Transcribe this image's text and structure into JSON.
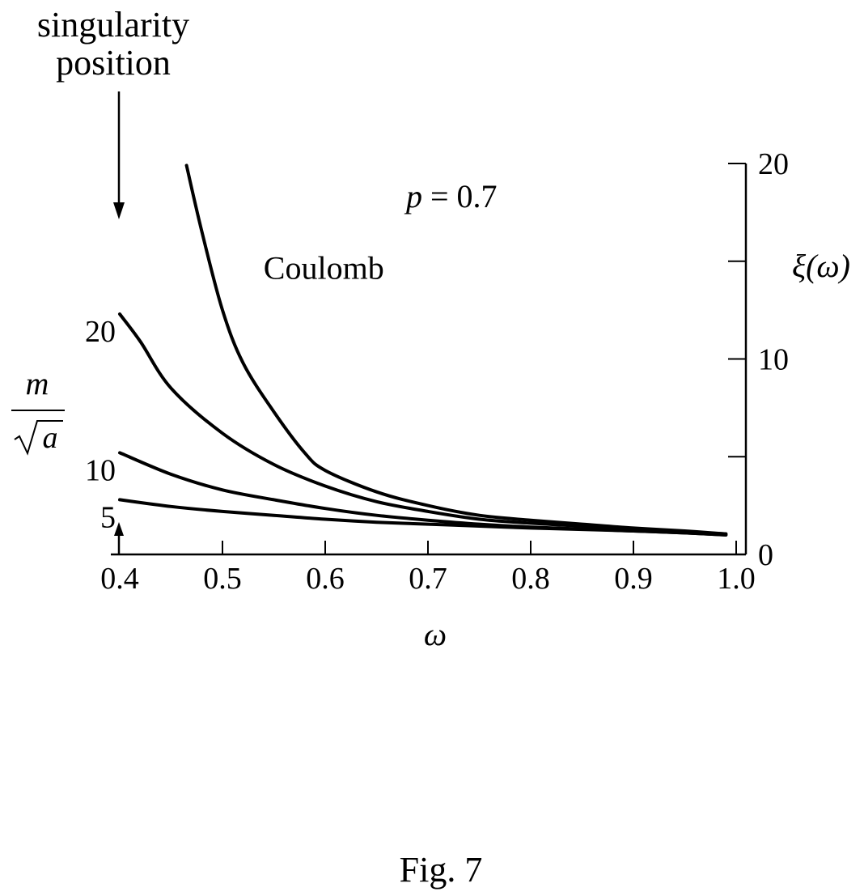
{
  "chart_data": {
    "type": "line",
    "annotation_top": [
      "singularity",
      "position"
    ],
    "parameter_label": {
      "var": "p",
      "rest": " = 0.7"
    },
    "legend_var": {
      "numerator": "m",
      "denominator": "a"
    },
    "xlabel": "ω",
    "ylabel": "ξ(ω)",
    "xlim": [
      0.4,
      1.0
    ],
    "ylim": [
      0,
      20
    ],
    "x_ticks": [
      0.4,
      0.5,
      0.6,
      0.7,
      0.8,
      0.9,
      1.0
    ],
    "x_tick_labels": [
      "0.4",
      "0.5",
      "0.6",
      "0.7",
      "0.8",
      "0.9",
      "1.0"
    ],
    "y_ticks": [
      0,
      5,
      10,
      15,
      20
    ],
    "y_tick_labels": [
      "0",
      "",
      "10",
      "",
      "20"
    ],
    "singularity_omega": 0.4,
    "grid": false,
    "series": [
      {
        "name": "Coulomb",
        "x": [
          0.465,
          0.48,
          0.5,
          0.52,
          0.55,
          0.58,
          0.6,
          0.65,
          0.7,
          0.75,
          0.8,
          0.85,
          0.9,
          0.95,
          0.99
        ],
        "y": [
          19.9,
          16.5,
          12.5,
          9.8,
          7.3,
          5.2,
          4.3,
          3.2,
          2.5,
          2.0,
          1.75,
          1.55,
          1.35,
          1.2,
          1.05
        ]
      },
      {
        "name": "20",
        "x": [
          0.4,
          0.42,
          0.45,
          0.5,
          0.55,
          0.6,
          0.65,
          0.7,
          0.75,
          0.8,
          0.85,
          0.9,
          0.95,
          0.99
        ],
        "y": [
          12.3,
          10.9,
          8.5,
          6.2,
          4.6,
          3.5,
          2.7,
          2.2,
          1.8,
          1.6,
          1.45,
          1.3,
          1.15,
          1.05
        ]
      },
      {
        "name": "10",
        "x": [
          0.4,
          0.45,
          0.5,
          0.55,
          0.6,
          0.65,
          0.7,
          0.75,
          0.8,
          0.85,
          0.9,
          0.95,
          0.99
        ],
        "y": [
          5.2,
          4.1,
          3.3,
          2.8,
          2.35,
          2.0,
          1.75,
          1.55,
          1.4,
          1.3,
          1.2,
          1.1,
          1.0
        ]
      },
      {
        "name": "5",
        "x": [
          0.4,
          0.45,
          0.5,
          0.55,
          0.6,
          0.65,
          0.7,
          0.75,
          0.8,
          0.85,
          0.9,
          0.95,
          0.99
        ],
        "y": [
          2.8,
          2.45,
          2.2,
          2.0,
          1.8,
          1.65,
          1.55,
          1.45,
          1.35,
          1.28,
          1.2,
          1.1,
          1.0
        ]
      }
    ]
  },
  "caption": "Fig. 7"
}
